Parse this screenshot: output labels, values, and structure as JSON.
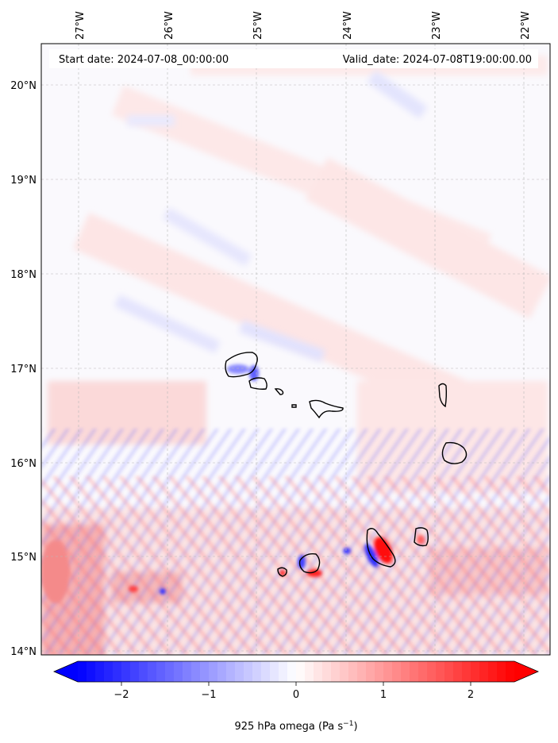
{
  "map": {
    "start_label": "Start date: 2024-07-08_00:00:00",
    "valid_label": "Valid_date: 2024-07-08T19:00:00.00",
    "lon_ticks": [
      "27°W",
      "26°W",
      "25°W",
      "24°W",
      "23°W",
      "22°W"
    ],
    "lat_ticks": [
      "20°N",
      "19°N",
      "18°N",
      "17°N",
      "16°N",
      "15°N",
      "14°N"
    ],
    "field": "omega",
    "projection": "PlateCarree",
    "extent": {
      "lon_min": -27.4,
      "lon_max": -21.7,
      "lat_min": 13.95,
      "lat_max": 20.42
    }
  },
  "colorbar": {
    "label_prefix": "925 hPa omega (Pa s",
    "label_exp": "−1",
    "label_suffix": ")",
    "ticks": [
      "−2",
      "−1",
      "0",
      "1",
      "2"
    ],
    "tick_values": [
      -2,
      -1,
      0,
      1,
      2
    ],
    "range": [
      -2.5,
      2.5
    ],
    "extend": "both",
    "cmap": "bwr",
    "color_low": "#0000ff",
    "color_mid": "#ffffff",
    "color_high": "#ff0000"
  }
}
